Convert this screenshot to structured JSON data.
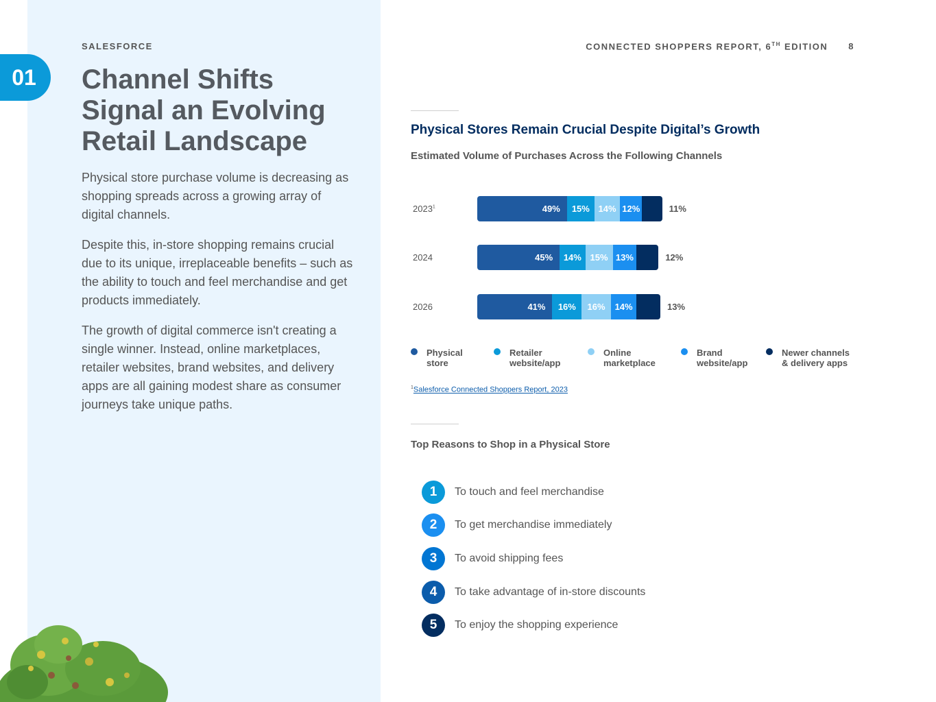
{
  "header": {
    "brand": "SALESFORCE",
    "report_title": "CONNECTED SHOPPERS REPORT, 6",
    "report_title_sup": "TH",
    "report_title_suffix": " EDITION",
    "page_number": "8"
  },
  "section": {
    "number": "01"
  },
  "left": {
    "title": "Channel Shifts Signal an Evolving Retail Landscape",
    "paragraphs": [
      "Physical store purchase volume is decreasing as shopping spreads across a growing array of digital channels.",
      "Despite this, in-store shopping remains crucial due to its unique, irreplaceable benefits – such as the ability to touch and feel merchandise and get products immediately.",
      "The growth of digital commerce isn't creating a single winner. Instead, online marketplaces, retailer websites, brand websites, and delivery apps are all gaining modest share as consumer journeys take unique paths."
    ]
  },
  "chart_data": {
    "type": "bar",
    "orientation": "horizontal-stacked",
    "title": "Physical Stores Remain Crucial Despite Digital’s Growth",
    "subtitle": "Estimated Volume of Purchases Across the Following Channels",
    "categories": [
      "2023",
      "2024",
      "2026"
    ],
    "category_sup": [
      "1",
      "",
      ""
    ],
    "series": [
      {
        "name": "Physical store",
        "color": "#1f5aa0",
        "values": [
          49,
          45,
          41
        ]
      },
      {
        "name": "Retailer website/app",
        "color": "#0b9ad9",
        "values": [
          15,
          14,
          16
        ]
      },
      {
        "name": "Online marketplace",
        "color": "#8fd0f5",
        "values": [
          14,
          15,
          16
        ]
      },
      {
        "name": "Brand website/app",
        "color": "#1b8ff0",
        "values": [
          12,
          13,
          14
        ]
      },
      {
        "name": "Newer channels & delivery apps",
        "color": "#032d60",
        "values": [
          11,
          12,
          13
        ]
      }
    ],
    "legend": [
      {
        "line1": "Physical",
        "line2": "store"
      },
      {
        "line1": "Retailer",
        "line2": "website/app"
      },
      {
        "line1": "Online",
        "line2": "marketplace"
      },
      {
        "line1": "Brand",
        "line2": "website/app"
      },
      {
        "line1": "Newer channels",
        "line2": "& delivery apps"
      }
    ],
    "legend_position": "bottom"
  },
  "footnote": {
    "sup": "1",
    "text": "Salesforce Connected Shoppers Report, 2023"
  },
  "reasons": {
    "title": "Top Reasons to Shop in a Physical Store",
    "items": [
      {
        "num": "1",
        "text": "To touch and feel merchandise",
        "color": "#0b9ad9"
      },
      {
        "num": "2",
        "text": "To get merchandise immediately",
        "color": "#1b8ff0"
      },
      {
        "num": "3",
        "text": "To avoid shipping fees",
        "color": "#0176d3"
      },
      {
        "num": "4",
        "text": "To take advantage of in-store discounts",
        "color": "#0b5cab"
      },
      {
        "num": "5",
        "text": "To enjoy the shopping experience",
        "color": "#032d60"
      }
    ]
  }
}
